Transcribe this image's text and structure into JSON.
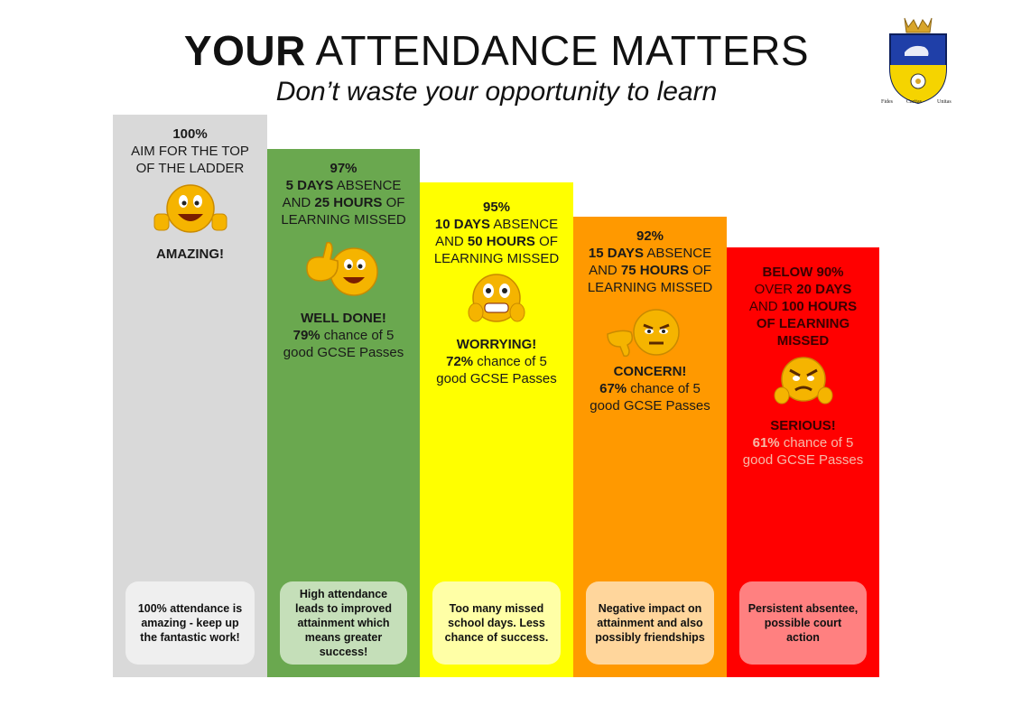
{
  "header": {
    "title_bold": "YOUR",
    "title_rest": " ATTENDANCE MATTERS",
    "subtitle": "Don’t waste your opportunity to learn"
  },
  "crest": {
    "motto": [
      "Fides",
      "Caritas",
      "Unitas"
    ],
    "colors": {
      "shield_top": "#1f3fa8",
      "shield_bottom": "#f5d400",
      "crown": "#d8a52a"
    }
  },
  "ladder": [
    {
      "color": "#d9d9d9",
      "percent": "100%",
      "line1": "AIM FOR THE TOP",
      "line2": "OF THE LADDER",
      "verdict": "AMAZING!",
      "note": "100% attendance is amazing - keep up the fantastic work!",
      "icon": "thumbs-up-smiley-icon"
    },
    {
      "color": "#6aa84f",
      "percent": "97%",
      "days": "5 DAYS",
      "absence": " ABSENCE",
      "and": "AND ",
      "hours": "25 HOURS",
      "of": " OF",
      "missed": "LEARNING MISSED",
      "verdict": "WELL DONE!",
      "chance_pct": "79%",
      "chance_text": " chance of 5",
      "chance_text2": "good GCSE Passes",
      "note": "High attendance leads to improved attainment which means greater success!",
      "icon": "thumbs-up-winking-smiley-icon"
    },
    {
      "color": "#ffff00",
      "percent": "95%",
      "days": "10 DAYS",
      "absence": " ABSENCE",
      "and": "AND ",
      "hours": "50 HOURS",
      "of": " OF",
      "missed": "LEARNING MISSED",
      "verdict": "WORRYING!",
      "chance_pct": "72%",
      "chance_text": " chance of 5",
      "chance_text2": "good GCSE Passes",
      "note": "Too many missed school days. Less chance of success.",
      "icon": "worried-smiley-icon"
    },
    {
      "color": "#ff9900",
      "percent": "92%",
      "days": "15 DAYS",
      "absence": " ABSENCE",
      "and": "AND ",
      "hours": "75 HOURS",
      "of": " OF",
      "missed": "LEARNING MISSED",
      "verdict": "CONCERN!",
      "chance_pct": "67%",
      "chance_text": " chance of 5",
      "chance_text2": "good GCSE Passes",
      "note": "Negative impact on attainment and also possibly friendships",
      "icon": "thumbs-down-annoyed-smiley-icon"
    },
    {
      "color": "#ff0000",
      "percent": "BELOW 90%",
      "over": "OVER ",
      "days": "20 DAYS",
      "and": "AND ",
      "hours": "100 HOURS",
      "missed1": "OF LEARNING",
      "missed2": "MISSED",
      "verdict": "SERIOUS!",
      "chance_pct": "61%",
      "chance_text": " chance of 5",
      "chance_text2": "good GCSE Passes",
      "note": "Persistent absentee, possible court action",
      "icon": "thumbs-down-angry-smiley-icon"
    }
  ]
}
